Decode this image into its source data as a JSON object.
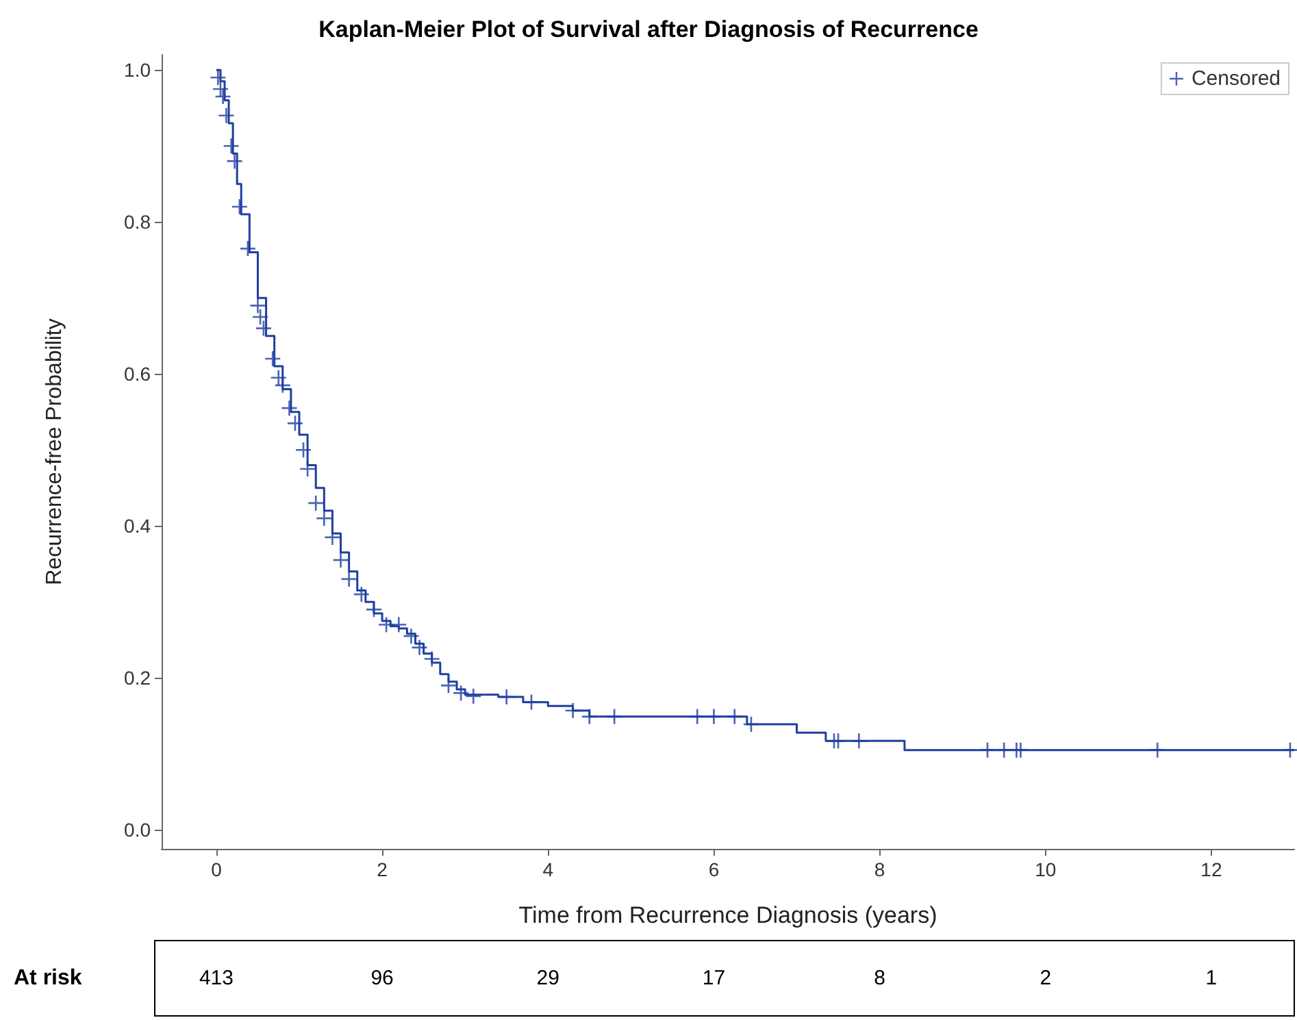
{
  "chart_data": {
    "type": "step",
    "title": "Kaplan-Meier Plot of Survival after Diagnosis of Recurrence",
    "xlabel": "Time from Recurrence Diagnosis (years)",
    "ylabel": "Recurrence-free Probability",
    "xlim": [
      -0.66,
      13
    ],
    "ylim": [
      -0.025,
      1.02
    ],
    "xticks": [
      0,
      2,
      4,
      6,
      8,
      10,
      12
    ],
    "yticks": [
      {
        "value": 0,
        "label": "0.0"
      },
      {
        "value": 0.2,
        "label": "0.2"
      },
      {
        "value": 0.4,
        "label": "0.4"
      },
      {
        "value": 0.6,
        "label": "0.6"
      },
      {
        "value": 0.8,
        "label": "0.8"
      },
      {
        "value": 1,
        "label": "1.0"
      }
    ],
    "grid": false,
    "legend": "top right",
    "annotations": [
      "At risk",
      "413",
      "96",
      "29",
      "17",
      "8",
      "2",
      "1"
    ],
    "series": [
      {
        "type": "step",
        "color": "#1f3fa0",
        "marker": "none",
        "x": [
          0,
          0.05,
          0.1,
          0.15,
          0.2,
          0.25,
          0.3,
          0.4,
          0.5,
          0.6,
          0.7,
          0.8,
          0.9,
          1.0,
          1.1,
          1.2,
          1.3,
          1.4,
          1.5,
          1.6,
          1.7,
          1.8,
          1.9,
          2.0,
          2.1,
          2.2,
          2.3,
          2.4,
          2.5,
          2.6,
          2.7,
          2.8,
          2.9,
          3.0,
          3.4,
          3.7,
          4.0,
          4.3,
          4.5,
          6.3,
          6.4,
          7.0,
          7.35,
          8.3,
          13
        ],
        "values": [
          1.0,
          0.985,
          0.96,
          0.93,
          0.89,
          0.85,
          0.81,
          0.76,
          0.7,
          0.65,
          0.61,
          0.58,
          0.55,
          0.52,
          0.48,
          0.45,
          0.42,
          0.39,
          0.365,
          0.34,
          0.315,
          0.3,
          0.285,
          0.275,
          0.268,
          0.265,
          0.258,
          0.245,
          0.232,
          0.22,
          0.205,
          0.195,
          0.185,
          0.178,
          0.175,
          0.168,
          0.163,
          0.157,
          0.149,
          0.149,
          0.139,
          0.128,
          0.117,
          0.105,
          0.105
        ]
      },
      {
        "type": "scatter",
        "name": "Censored",
        "color": "#1f3fa0",
        "marker": "cross",
        "x": [
          0.02,
          0.05,
          0.08,
          0.12,
          0.18,
          0.22,
          0.28,
          0.38,
          0.5,
          0.53,
          0.57,
          0.68,
          0.75,
          0.8,
          0.88,
          0.95,
          1.05,
          1.1,
          1.2,
          1.3,
          1.4,
          1.5,
          1.6,
          1.75,
          1.9,
          2.05,
          2.2,
          2.35,
          2.45,
          2.6,
          2.8,
          2.95,
          3.1,
          3.5,
          3.8,
          4.3,
          4.5,
          4.8,
          5.8,
          6.0,
          6.25,
          6.45,
          7.45,
          7.5,
          7.75,
          9.3,
          9.5,
          9.65,
          9.7,
          11.35,
          12.95
        ],
        "values": [
          0.99,
          0.975,
          0.965,
          0.94,
          0.9,
          0.88,
          0.82,
          0.765,
          0.69,
          0.675,
          0.66,
          0.62,
          0.595,
          0.585,
          0.555,
          0.535,
          0.5,
          0.475,
          0.43,
          0.41,
          0.385,
          0.355,
          0.33,
          0.31,
          0.29,
          0.27,
          0.27,
          0.255,
          0.24,
          0.225,
          0.19,
          0.18,
          0.176,
          0.175,
          0.168,
          0.157,
          0.149,
          0.149,
          0.149,
          0.149,
          0.149,
          0.139,
          0.117,
          0.117,
          0.117,
          0.105,
          0.105,
          0.105,
          0.105,
          0.105,
          0.105
        ]
      }
    ]
  }
}
